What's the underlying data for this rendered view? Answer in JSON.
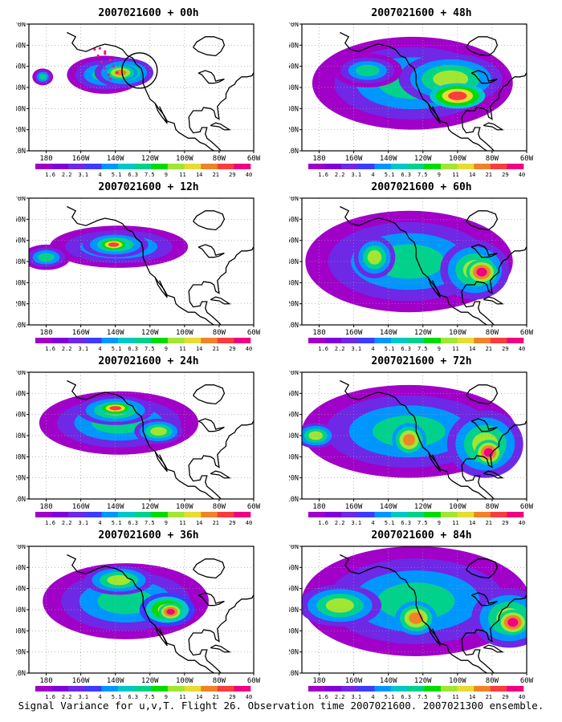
{
  "panels": [
    {
      "title": "2007021600 + 00h",
      "lead": 0
    },
    {
      "title": "2007021600 + 12h",
      "lead": 12
    },
    {
      "title": "2007021600 + 24h",
      "lead": 24
    },
    {
      "title": "2007021600 + 36h",
      "lead": 36
    },
    {
      "title": "2007021600 + 48h",
      "lead": 48
    },
    {
      "title": "2007021600 + 60h",
      "lead": 60
    },
    {
      "title": "2007021600 + 72h",
      "lead": 72
    },
    {
      "title": "2007021600 + 84h",
      "lead": 84
    }
  ],
  "map": {
    "lat_ticks": [
      "10N",
      "20N",
      "30N",
      "40N",
      "50N",
      "60N",
      "70N"
    ],
    "lon_ticks": [
      "180",
      "160W",
      "140W",
      "120W",
      "100W",
      "80W",
      "60W"
    ],
    "lat_range": [
      10,
      70
    ],
    "lon_range": [
      -190,
      -60
    ],
    "grid": "dotted"
  },
  "colorbar": {
    "labels": [
      "1.6",
      "2.2",
      "3.1",
      "4",
      "5.1",
      "6.3",
      "7.5",
      "9",
      "11",
      "14",
      "21",
      "29",
      "40"
    ],
    "colors": [
      "#a000c8",
      "#8200dc",
      "#6e28e6",
      "#3c3cff",
      "#0096ff",
      "#00c8c8",
      "#00d28c",
      "#00dc00",
      "#a0e632",
      "#e6dc32",
      "#f08228",
      "#fa3c3c",
      "#f00082"
    ]
  },
  "footer": "Signal Variance for u,v,T. Flight 26. Observation time 2007021600. 2007021300 ensemble."
}
